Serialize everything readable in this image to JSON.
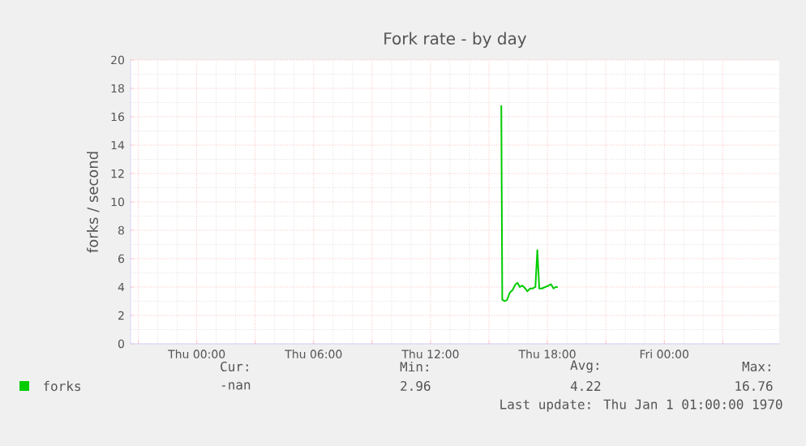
{
  "chart_data": {
    "type": "line",
    "title": "Fork rate - by day",
    "ylabel": "forks / second",
    "x": [
      "1970-01-01T15:38",
      "1970-01-01T15:41",
      "1970-01-01T15:49",
      "1970-01-01T15:56",
      "1970-01-01T16:04",
      "1970-01-01T16:13",
      "1970-01-01T16:22",
      "1970-01-01T16:28",
      "1970-01-01T16:35",
      "1970-01-01T16:43",
      "1970-01-01T16:52",
      "1970-01-01T16:58",
      "1970-01-01T17:07",
      "1970-01-01T17:15",
      "1970-01-01T17:23",
      "1970-01-01T17:29",
      "1970-01-01T17:35",
      "1970-01-01T17:43",
      "1970-01-01T17:53",
      "1970-01-01T18:04",
      "1970-01-01T18:11",
      "1970-01-01T18:19",
      "1970-01-01T18:25",
      "1970-01-01T18:32"
    ],
    "series": [
      {
        "name": "forks",
        "color": "#00cc00",
        "values": [
          16.8,
          3.1,
          3.0,
          3.1,
          3.6,
          3.8,
          4.2,
          4.3,
          4.0,
          4.1,
          3.9,
          3.7,
          3.9,
          3.9,
          4.0,
          6.6,
          3.9,
          3.9,
          4.0,
          4.1,
          4.2,
          3.9,
          4.0,
          4.0
        ]
      }
    ],
    "xlim": [
      "1969-12-31T20:36",
      "1970-01-02T05:54"
    ],
    "xticks": [
      {
        "value": "1969-12-31T21:00",
        "label": null
      },
      {
        "value": "1970-01-01T00:00",
        "label": "Thu 00:00"
      },
      {
        "value": "1970-01-01T03:00",
        "label": null
      },
      {
        "value": "1970-01-01T06:00",
        "label": "Thu 06:00"
      },
      {
        "value": "1970-01-01T09:00",
        "label": null
      },
      {
        "value": "1970-01-01T12:00",
        "label": "Thu 12:00"
      },
      {
        "value": "1970-01-01T15:00",
        "label": null
      },
      {
        "value": "1970-01-01T18:00",
        "label": "Thu 18:00"
      },
      {
        "value": "1970-01-01T21:00",
        "label": null
      },
      {
        "value": "1970-01-02T00:00",
        "label": "Fri 00:00"
      },
      {
        "value": "1970-01-02T03:00",
        "label": null
      }
    ],
    "ylim": [
      0,
      20
    ],
    "yticks": [
      0,
      2,
      4,
      6,
      8,
      10,
      12,
      14,
      16,
      18,
      20
    ],
    "grid": true,
    "legend": "bottom left",
    "marker": "none",
    "line_style": "solid",
    "annotations": [
      "Cur:",
      "Min:",
      "Avg:",
      "Max:",
      "-nan",
      "2.96",
      "4.22",
      "16.76",
      "Last update: Thu Jan  1 01:00:00 1970"
    ]
  }
}
